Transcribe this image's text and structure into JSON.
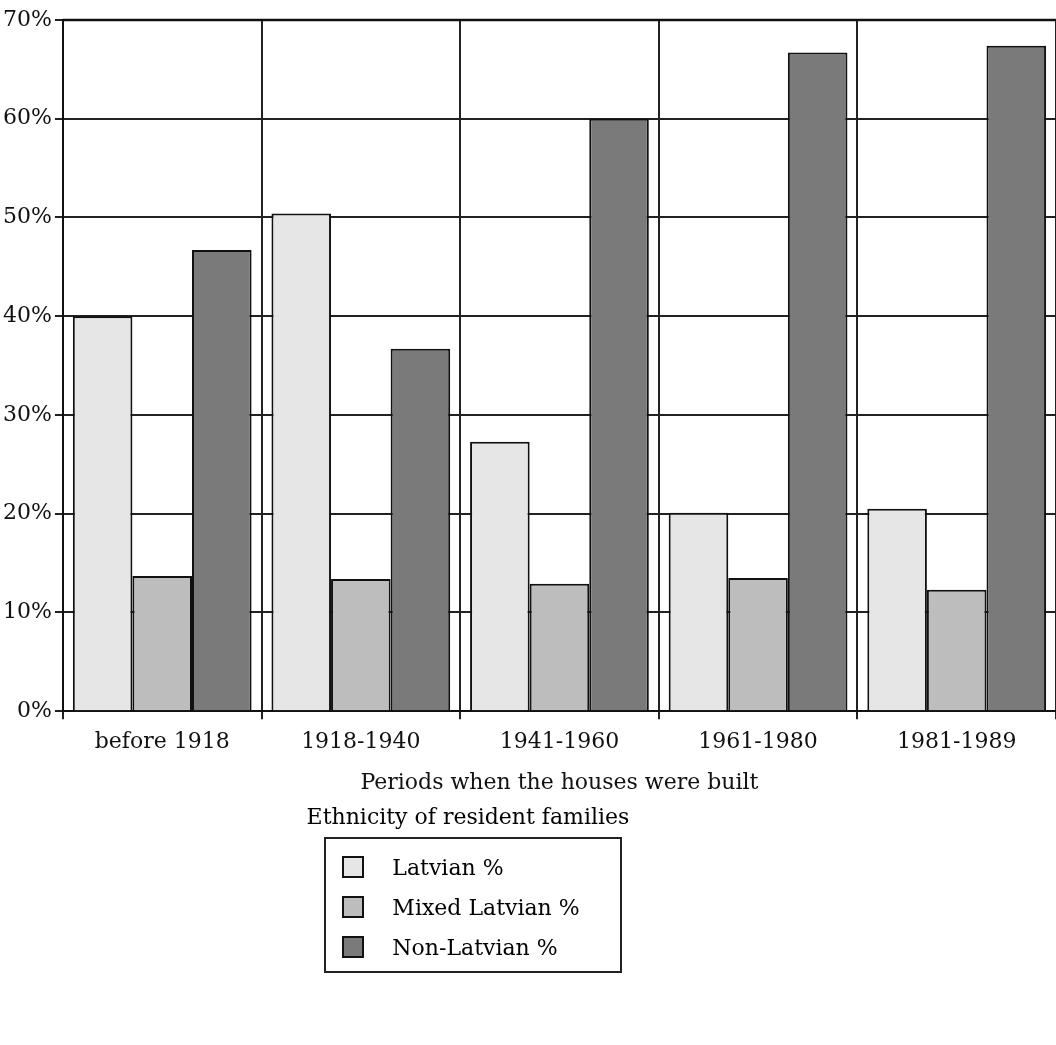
{
  "chart_data": {
    "type": "bar",
    "xlabel": "Periods when the houses were built",
    "legend_title": "Ethnicity of resident families",
    "categories": [
      "before 1918",
      "1918-1940",
      "1941-1960",
      "1961-1980",
      "1981-1989"
    ],
    "series": [
      {
        "name": "Latvian %",
        "color": "#e6e6e6",
        "values": [
          40.0,
          50.4,
          27.3,
          20.1,
          20.5
        ]
      },
      {
        "name": "Mixed Latvian %",
        "color": "#bdbdbd",
        "values": [
          13.7,
          13.4,
          12.9,
          13.5,
          12.3
        ]
      },
      {
        "name": "Non-Latvian %",
        "color": "#7a7a7a",
        "values": [
          46.7,
          36.7,
          60.0,
          66.7,
          67.4
        ]
      }
    ],
    "ylim": [
      0,
      70
    ],
    "yticks": [
      {
        "value": 0,
        "label": "0%"
      },
      {
        "value": 10,
        "label": "10%"
      },
      {
        "value": 20,
        "label": "20%"
      },
      {
        "value": 30,
        "label": "30%"
      },
      {
        "value": 40,
        "label": "40%"
      },
      {
        "value": 50,
        "label": "50%"
      },
      {
        "value": 60,
        "label": "60%"
      },
      {
        "value": 70,
        "label": "70%"
      }
    ],
    "grid": true,
    "legend": "bottom"
  }
}
